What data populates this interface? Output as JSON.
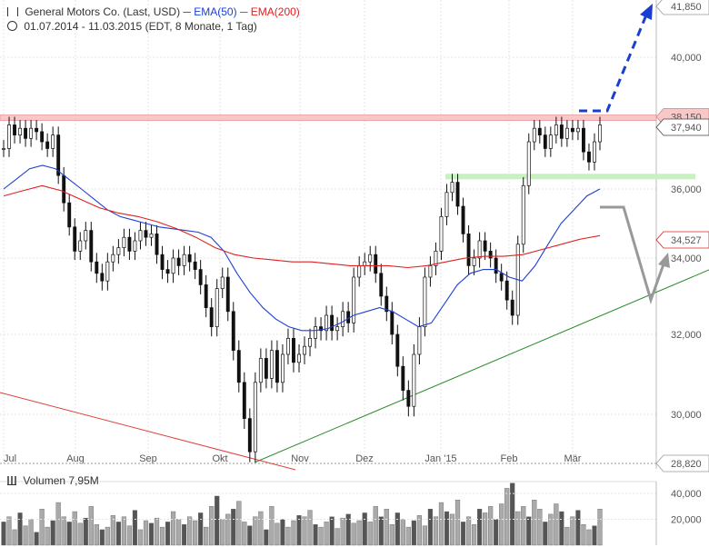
{
  "header": {
    "title": "General Motors Co. (Last, USD)",
    "ema50_label": "EMA(50)",
    "ema200_label": "EMA(200)",
    "period": "01.07.2014 - 11.03.2015 (EDT, 8 Monate, 1 Tag)"
  },
  "volume": {
    "label": "Volumen",
    "value": "7,95M",
    "ticks": [
      "40,000",
      "20,000"
    ]
  },
  "colors": {
    "ema50": "#2040d0",
    "ema200": "#e02020",
    "support_band": "#c8f0c0",
    "resistance_band": "#f8c8c8",
    "trend_line": "#2a8a2a",
    "target_arrow": "#1a3fd0",
    "pullback_arrow": "#999999"
  },
  "chart_data": {
    "type": "line",
    "title": "General Motors Co. (Last, USD)",
    "xlabel": "",
    "ylabel": "",
    "ylim": [
      28.82,
      41.85
    ],
    "x_ticks": [
      "Jul",
      "Aug",
      "Sep",
      "Okt",
      "Nov",
      "Dez",
      "Jan '15",
      "Feb",
      "Mär"
    ],
    "y_ticks": [
      30,
      32,
      34,
      36,
      40
    ],
    "y_tick_labels": [
      "30,000",
      "32,000",
      "34,000",
      "36,000",
      "40,000"
    ],
    "price_labels": {
      "top": "41,850",
      "resistance": "38,150",
      "last": "37,940",
      "ema": "34,527",
      "bottom": "28,820"
    },
    "grid": true,
    "legend": "top-left",
    "series": [
      {
        "name": "General Motors Co. (Last, USD)",
        "values": [
          37.2,
          37.9,
          37.6,
          37.8,
          37.5,
          37.8,
          37.7,
          37.4,
          37.2,
          37.6,
          36.4,
          35.6,
          34.9,
          34.2,
          34.5,
          34.8,
          33.9,
          33.6,
          33.4,
          33.9,
          34.1,
          34.3,
          34.6,
          34.2,
          34.5,
          34.8,
          34.6,
          34.7,
          34.1,
          33.7,
          33.6,
          34.0,
          33.8,
          34.1,
          33.9,
          33.7,
          33.3,
          32.7,
          32.2,
          33.2,
          33.5,
          32.6,
          31.6,
          30.8,
          29.9,
          29.1,
          30.8,
          31.4,
          30.9,
          31.6,
          30.8,
          31.5,
          31.9,
          31.3,
          31.5,
          31.7,
          31.9,
          32.2,
          32.1,
          32.5,
          32.1,
          32.2,
          32.6,
          32.3,
          33.5,
          33.8,
          33.9,
          34.1,
          33.6,
          33.0,
          32.6,
          32.0,
          31.2,
          30.6,
          30.2,
          31.5,
          32.2,
          33.5,
          33.8,
          34.2,
          35.2,
          35.9,
          36.2,
          35.5,
          34.7,
          33.8,
          34.0,
          34.5,
          34.2,
          34.0,
          33.6,
          33.4,
          32.9,
          32.5,
          34.4,
          36.1,
          37.4,
          37.8,
          37.6,
          37.2,
          37.6,
          37.9,
          37.5,
          37.8,
          37.7,
          37.8,
          37.1,
          36.8,
          37.4,
          37.9
        ],
        "note_range": "2014-07-01 to 2015-03-11"
      },
      {
        "name": "EMA(50)",
        "values": [
          36.0,
          36.3,
          36.6,
          36.7,
          36.6,
          36.3,
          36.0,
          35.7,
          35.4,
          35.2,
          35.1,
          35.0,
          34.9,
          34.85,
          34.8,
          34.75,
          34.6,
          34.2,
          33.6,
          33.1,
          32.7,
          32.4,
          32.2,
          32.1,
          32.1,
          32.15,
          32.3,
          32.5,
          32.6,
          32.7,
          32.6,
          32.4,
          32.2,
          32.3,
          32.8,
          33.3,
          33.6,
          33.7,
          33.7,
          33.5,
          33.4,
          33.8,
          34.4,
          35.0,
          35.4,
          35.8,
          36.0
        ]
      },
      {
        "name": "EMA(200)",
        "values": [
          35.8,
          35.95,
          36.1,
          35.95,
          35.7,
          35.45,
          35.3,
          35.2,
          35.05,
          34.85,
          34.6,
          34.3,
          34.1,
          34.0,
          33.95,
          33.9,
          33.9,
          33.85,
          33.8,
          33.8,
          33.8,
          33.75,
          33.8,
          33.9,
          34.0,
          34.05,
          34.05,
          34.1,
          34.25,
          34.4,
          34.55,
          34.65
        ]
      }
    ],
    "volume_values": [
      18,
      22,
      12,
      25,
      15,
      20,
      10,
      28,
      14,
      19,
      33,
      22,
      18,
      26,
      17,
      21,
      30,
      16,
      12,
      14,
      23,
      18,
      22,
      15,
      27,
      12,
      19,
      17,
      21,
      14,
      18,
      26,
      20,
      16,
      22,
      19,
      25,
      14,
      30,
      38,
      20,
      24,
      28,
      34,
      18,
      15,
      22,
      26,
      12,
      30,
      17,
      20,
      14,
      19,
      23,
      22,
      27,
      16,
      14,
      18,
      22,
      13,
      21,
      24,
      17,
      19,
      25,
      18,
      30,
      22,
      28,
      16,
      25,
      20,
      14,
      19,
      23,
      15,
      28,
      22,
      33,
      26,
      24,
      35,
      18,
      22,
      16,
      28,
      25,
      30,
      20,
      32,
      44,
      48,
      26,
      30,
      22,
      35,
      28,
      18,
      24,
      32,
      26,
      14,
      22,
      27,
      16,
      12,
      15,
      28
    ],
    "volume_ylim": [
      0,
      45
    ],
    "annotations": [
      {
        "type": "resistance_band",
        "from": 37.95,
        "to": 38.15
      },
      {
        "type": "support_band",
        "from": 36.25,
        "to": 36.45
      },
      {
        "type": "trend_line",
        "from": [
          0.0,
          26.0
        ],
        "to": [
          1.0,
          34.35
        ]
      },
      {
        "type": "channel_line",
        "from": [
          0.0,
          30.6
        ],
        "to": [
          0.42,
          28.82
        ]
      },
      {
        "type": "target_arrow",
        "to": 41.85
      },
      {
        "type": "pullback_arrow",
        "to": 34.3
      }
    ]
  }
}
